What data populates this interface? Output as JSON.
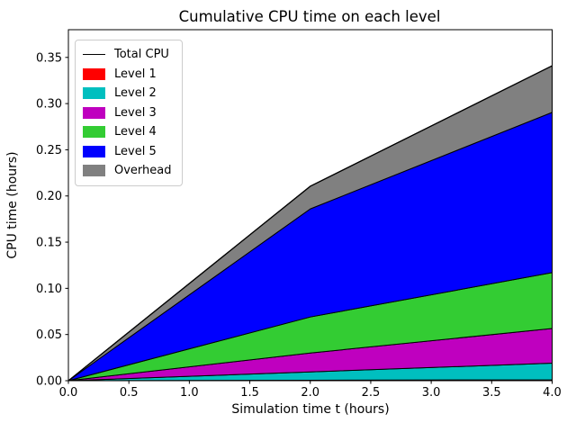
{
  "chart_data": {
    "type": "area",
    "stacked": true,
    "title": "Cumulative CPU time on each level",
    "xlabel": "Simulation time t (hours)",
    "ylabel": "CPU time (hours)",
    "x": [
      0.0,
      2.0,
      4.0
    ],
    "series": [
      {
        "name": "Level 1",
        "color": "#ff0000",
        "values": [
          0,
          0.0005,
          0.001
        ]
      },
      {
        "name": "Level 2",
        "color": "#00bfbf",
        "values": [
          0,
          0.009,
          0.018
        ]
      },
      {
        "name": "Level 3",
        "color": "#bf00bf",
        "values": [
          0,
          0.0205,
          0.0375
        ]
      },
      {
        "name": "Level 4",
        "color": "#33cc33",
        "values": [
          0,
          0.039,
          0.0605
        ]
      },
      {
        "name": "Level 5",
        "color": "#0000ff",
        "values": [
          0,
          0.117,
          0.1735
        ]
      },
      {
        "name": "Overhead",
        "color": "#808080",
        "values": [
          0,
          0.0245,
          0.0505
        ]
      }
    ],
    "total": {
      "name": "Total CPU",
      "color": "#000000",
      "values": [
        0,
        0.2105,
        0.341
      ]
    },
    "xlim": [
      0,
      4.0
    ],
    "ylim": [
      0,
      0.38
    ],
    "xticks": {
      "values": [
        0.0,
        0.5,
        1.0,
        1.5,
        2.0,
        2.5,
        3.0,
        3.5,
        4.0
      ],
      "labels": [
        "0.0",
        "0.5",
        "1.0",
        "1.5",
        "2.0",
        "2.5",
        "3.0",
        "3.5",
        "4.0"
      ]
    },
    "yticks": {
      "values": [
        0.0,
        0.05,
        0.1,
        0.15,
        0.2,
        0.25,
        0.3,
        0.35
      ],
      "labels": [
        "0.00",
        "0.05",
        "0.10",
        "0.15",
        "0.20",
        "0.25",
        "0.30",
        "0.35"
      ]
    },
    "legend": {
      "position": "upper left"
    },
    "grid": false,
    "background": "#ffffff",
    "axis_color": "#000000"
  }
}
